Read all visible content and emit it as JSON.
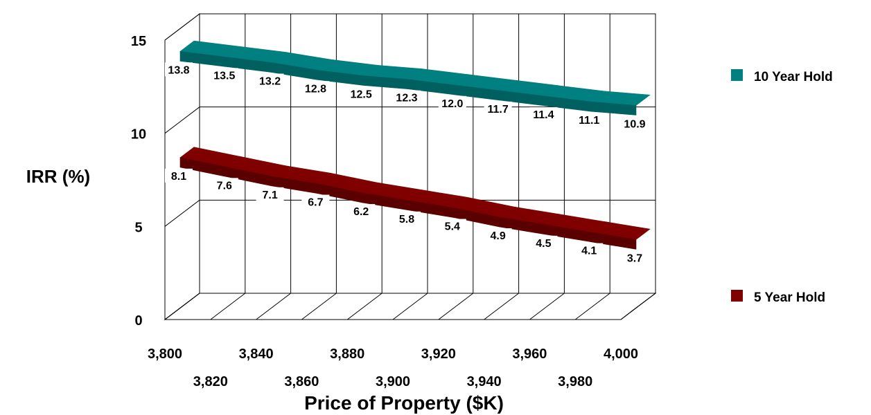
{
  "chart_data": {
    "type": "line",
    "style": "3d-ribbon",
    "xlabel": "Price of Property ($K)",
    "ylabel": "IRR (%)",
    "ylim": [
      0,
      15
    ],
    "yticks": [
      "0",
      "5",
      "10",
      "15"
    ],
    "categories": [
      "3,800",
      "3,820",
      "3,840",
      "3,860",
      "3,880",
      "3,900",
      "3,920",
      "3,940",
      "3,960",
      "3,980",
      "4,000"
    ],
    "grid": true,
    "legend_position": "right",
    "series": [
      {
        "name": "10 Year Hold",
        "color": "#008080",
        "values": [
          13.8,
          13.5,
          13.2,
          12.8,
          12.5,
          12.3,
          12.0,
          11.7,
          11.4,
          11.1,
          10.9
        ],
        "labels": [
          "13.8",
          "13.5",
          "13.2",
          "12.8",
          "12.5",
          "12.3",
          "12.0",
          "11.7",
          "11.4",
          "11.1",
          "10.9"
        ]
      },
      {
        "name": "5 Year Hold",
        "color": "#800000",
        "values": [
          8.1,
          7.6,
          7.1,
          6.7,
          6.2,
          5.8,
          5.4,
          4.9,
          4.5,
          4.1,
          3.7
        ],
        "labels": [
          "8.1",
          "7.6",
          "7.1",
          "6.7",
          "6.2",
          "5.8",
          "5.4",
          "4.9",
          "4.5",
          "4.1",
          "3.7"
        ]
      }
    ]
  }
}
